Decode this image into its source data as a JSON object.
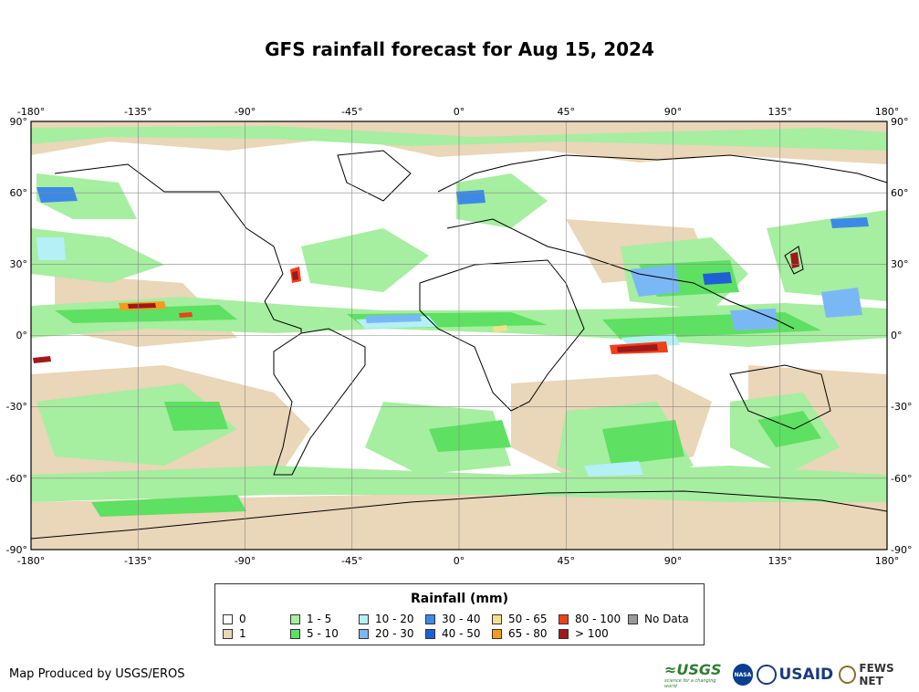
{
  "title": "GFS rainfall forecast for Aug 15, 2024",
  "map": {
    "lon_ticks": [
      "-180°",
      "-135°",
      "-90°",
      "-45°",
      "0°",
      "45°",
      "90°",
      "135°",
      "180°"
    ],
    "lat_ticks_left": [
      "90°",
      "60°",
      "30°",
      "0°",
      "-30°",
      "-60°",
      "-90°"
    ],
    "lat_ticks_right": [
      "90°",
      "60°",
      "30°",
      "0°",
      "-30°",
      "-60°",
      "-90°"
    ]
  },
  "legend": {
    "title": "Rainfall (mm)",
    "items": [
      {
        "label": "0",
        "color": "#ffffff"
      },
      {
        "label": "1",
        "color": "#ead6b8"
      },
      {
        "label": "1 - 5",
        "color": "#a6eea0"
      },
      {
        "label": "5 - 10",
        "color": "#5ee062"
      },
      {
        "label": "10 - 20",
        "color": "#b4f0f5"
      },
      {
        "label": "20 - 30",
        "color": "#7ab8f5"
      },
      {
        "label": "30 - 40",
        "color": "#3c8ae6"
      },
      {
        "label": "40 - 50",
        "color": "#1f5fd6"
      },
      {
        "label": "50 - 65",
        "color": "#f5e08a"
      },
      {
        "label": "65 - 80",
        "color": "#f59a1a"
      },
      {
        "label": "80 - 100",
        "color": "#f0401a"
      },
      {
        "label": "> 100",
        "color": "#a01818"
      },
      {
        "label": "No Data",
        "color": "#999999"
      }
    ]
  },
  "credit": "Map Produced by USGS/EROS",
  "logos": {
    "usgs": "≈USGS",
    "usgs_tagline": "science for a changing world",
    "nasa": "NASA",
    "usaid": "USAID",
    "fews": "FEWS NET"
  }
}
